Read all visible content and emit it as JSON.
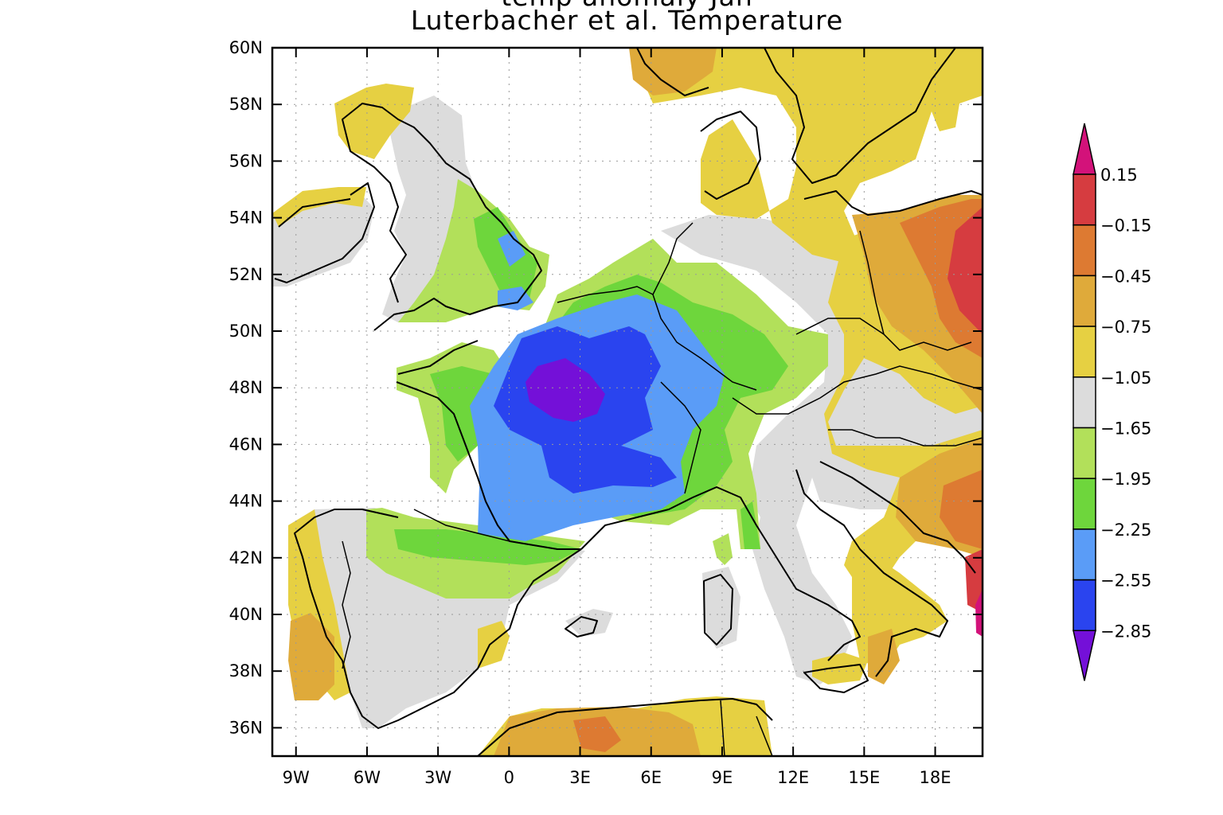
{
  "title": {
    "line1": "temp anomaly Jan",
    "line2": "Luterbacher et al. Temperature"
  },
  "axes": {
    "x_ticks": [
      "9W",
      "6W",
      "3W",
      "0",
      "3E",
      "6E",
      "9E",
      "12E",
      "15E",
      "18E"
    ],
    "y_ticks": [
      "60N",
      "58N",
      "56N",
      "54N",
      "52N",
      "50N",
      "48N",
      "46N",
      "44N",
      "42N",
      "40N",
      "38N",
      "36N"
    ],
    "lon_range": [
      -10,
      20
    ],
    "lat_range": [
      35,
      60
    ],
    "grid": "dotted"
  },
  "colorbar": {
    "labels": [
      "0.15",
      "−0.15",
      "−0.45",
      "−0.75",
      "−1.05",
      "−1.65",
      "−1.95",
      "−2.25",
      "−2.55",
      "−2.85"
    ],
    "colors": [
      "#d3127a",
      "#d63c40",
      "#dd7a32",
      "#dfaa3a",
      "#e6d042",
      "#dcdcdc",
      "#b2e05a",
      "#6ed63c",
      "#5a9cf7",
      "#2a44ef",
      "#7410d8"
    ]
  },
  "chart_data": {
    "type": "heatmap",
    "title": "Luterbacher et al. Temperature",
    "xlabel": "",
    "ylabel": "",
    "xlim": [
      -10,
      20
    ],
    "ylim": [
      35,
      60
    ],
    "grid": true,
    "legend": "right colorbar",
    "levels": [
      0.15,
      -0.15,
      -0.45,
      -0.75,
      -1.05,
      -1.65,
      -1.95,
      -2.25,
      -2.55,
      -2.85
    ]
  }
}
